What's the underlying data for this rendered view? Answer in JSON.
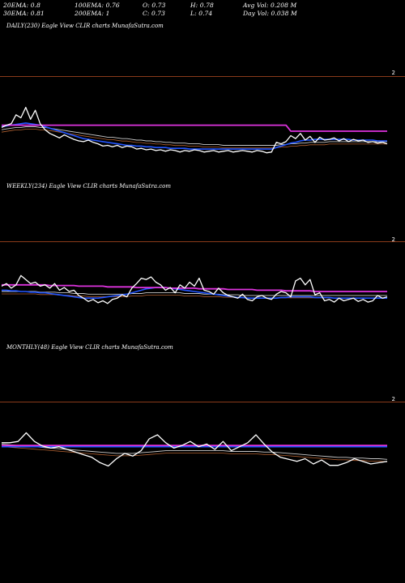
{
  "header": {
    "row1": [
      {
        "label": "20EMA: 0.8"
      },
      {
        "label": "100EMA: 0.76"
      },
      {
        "label": "O: 0.73"
      },
      {
        "label": "H: 0.78"
      },
      {
        "label": "Avg Vol: 0.208 M"
      }
    ],
    "row2": [
      {
        "label": "30EMA: 0.81"
      },
      {
        "label": "200EMA: 1"
      },
      {
        "label": "C: 0.73"
      },
      {
        "label": "L: 0.74"
      },
      {
        "label": "Day Vol: 0.038 M"
      }
    ]
  },
  "panels": {
    "daily_label": "DAILY(230) Eagle   View  CLIR charts MunafaSutra.com",
    "weekly_label": "WEEKLY(234) Eagle   View  CLIR charts MunafaSutra.com",
    "monthly_label": "MONTHLY(48) Eagle   View  CLIR charts MunafaSutra.com",
    "edge_marker": "2"
  },
  "colors": {
    "background": "#000000",
    "separator": "#8a3a1a",
    "price": "#ffffff",
    "ema_short": "#2255ff",
    "ema_long": "#dd33dd",
    "ema_mid": "#c8c8c8",
    "ema_slow": "#b06030"
  },
  "chart_data": [
    {
      "type": "line",
      "title": "DAILY(230) Eagle View CLIR charts MunafaSutra.com",
      "x": [
        0,
        1,
        2,
        3,
        4,
        5,
        6,
        7,
        8,
        9,
        10,
        11,
        12,
        13,
        14,
        15,
        16,
        17,
        18,
        19,
        20,
        21,
        22,
        23,
        24,
        25,
        26,
        27,
        28,
        29,
        30,
        31,
        32,
        33,
        34,
        35,
        36,
        37,
        38,
        39,
        40,
        41,
        42,
        43,
        44,
        45,
        46,
        47,
        48,
        49,
        50,
        51,
        52,
        53,
        54,
        55,
        56,
        57,
        58,
        59,
        60,
        61,
        62,
        63,
        64,
        65,
        66,
        67,
        68,
        69,
        70,
        71,
        72,
        73,
        74,
        75,
        76,
        77,
        78,
        79,
        80
      ],
      "ylim": [
        0,
        100
      ],
      "series": [
        {
          "values": [
            55,
            58,
            60,
            72,
            68,
            82,
            66,
            78,
            60,
            52,
            47,
            44,
            41,
            45,
            42,
            39,
            37,
            36,
            38,
            35,
            33,
            30,
            31,
            29,
            31,
            28,
            30,
            29,
            26,
            27,
            25,
            26,
            24,
            25,
            23,
            25,
            24,
            22,
            24,
            23,
            25,
            24,
            22,
            23,
            24,
            22,
            23,
            24,
            22,
            23,
            24,
            23,
            22,
            24,
            23,
            21,
            22,
            35,
            33,
            36,
            44,
            40,
            47,
            38,
            43,
            35,
            42,
            38,
            39,
            41,
            37,
            40,
            36,
            39,
            37,
            38,
            35,
            36,
            34,
            35,
            33
          ]
        },
        {
          "values": [
            56,
            57,
            58,
            59,
            60,
            61,
            60,
            59,
            58,
            56,
            54,
            52,
            50,
            48,
            46,
            44,
            42,
            40,
            39,
            38,
            37,
            36,
            35,
            34,
            33,
            32,
            31,
            31,
            30,
            30,
            29,
            29,
            28,
            28,
            28,
            27,
            27,
            27,
            27,
            26,
            26,
            26,
            26,
            26,
            26,
            26,
            26,
            26,
            26,
            26,
            26,
            26,
            26,
            26,
            26,
            26,
            26,
            28,
            30,
            32,
            34,
            35,
            37,
            38,
            38,
            39,
            39,
            39,
            39,
            39,
            39,
            39,
            39,
            38,
            38,
            38,
            38,
            38,
            37,
            37,
            37
          ]
        },
        {
          "values": [
            52,
            53,
            54,
            55,
            55,
            56,
            56,
            56,
            55,
            55,
            54,
            53,
            52,
            51,
            50,
            49,
            48,
            47,
            46,
            45,
            44,
            43,
            42,
            42,
            41,
            40,
            40,
            39,
            38,
            38,
            37,
            37,
            36,
            36,
            35,
            35,
            34,
            34,
            34,
            33,
            33,
            33,
            32,
            32,
            32,
            32,
            31,
            31,
            31,
            31,
            31,
            31,
            31,
            31,
            31,
            31,
            31,
            31,
            32,
            32,
            33,
            33,
            34,
            34,
            35,
            35,
            35,
            35,
            36,
            36,
            36,
            36,
            36,
            36,
            36,
            36,
            36,
            36,
            36,
            36,
            36
          ]
        },
        {
          "values": [
            58,
            58,
            58,
            58,
            58,
            58,
            58,
            58,
            58,
            58,
            58,
            58,
            58,
            58,
            58,
            58,
            58,
            58,
            58,
            58,
            58,
            58,
            58,
            58,
            58,
            58,
            58,
            58,
            58,
            58,
            58,
            58,
            58,
            58,
            58,
            58,
            58,
            58,
            58,
            58,
            58,
            58,
            58,
            58,
            58,
            58,
            58,
            58,
            58,
            58,
            58,
            58,
            58,
            58,
            58,
            58,
            58,
            58,
            58,
            58,
            50,
            50,
            50,
            50,
            50,
            50,
            50,
            50,
            50,
            50,
            50,
            50,
            50,
            50,
            50,
            50,
            50,
            50,
            50,
            50,
            50
          ]
        }
      ]
    },
    {
      "type": "line",
      "title": "WEEKLY(234) Eagle View CLIR charts MunafaSutra.com",
      "x": [
        0,
        1,
        2,
        3,
        4,
        5,
        6,
        7,
        8,
        9,
        10,
        11,
        12,
        13,
        14,
        15,
        16,
        17,
        18,
        19,
        20,
        21,
        22,
        23,
        24,
        25,
        26,
        27,
        28,
        29,
        30,
        31,
        32,
        33,
        34,
        35,
        36,
        37,
        38,
        39,
        40,
        41,
        42,
        43,
        44,
        45,
        46,
        47,
        48,
        49,
        50,
        51,
        52,
        53,
        54,
        55,
        56,
        57,
        58,
        59,
        60,
        61,
        62,
        63,
        64,
        65,
        66,
        67,
        68,
        69,
        70,
        71,
        72,
        73,
        74,
        75,
        76,
        77,
        78,
        79,
        80
      ],
      "ylim": [
        0,
        100
      ],
      "series": [
        {
          "values": [
            58,
            62,
            55,
            60,
            74,
            68,
            62,
            64,
            58,
            60,
            55,
            62,
            52,
            56,
            50,
            52,
            44,
            40,
            35,
            38,
            33,
            36,
            32,
            38,
            40,
            45,
            42,
            55,
            62,
            70,
            68,
            72,
            64,
            60,
            52,
            56,
            48,
            60,
            55,
            64,
            58,
            70,
            52,
            50,
            46,
            55,
            48,
            44,
            42,
            40,
            46,
            38,
            36,
            42,
            44,
            40,
            38,
            46,
            50,
            48,
            42,
            66,
            70,
            60,
            68,
            45,
            48,
            36,
            38,
            34,
            40,
            36,
            38,
            40,
            35,
            38,
            34,
            36,
            44,
            40,
            42
          ]
        },
        {
          "values": [
            52,
            52,
            51,
            51,
            50,
            50,
            49,
            49,
            48,
            48,
            47,
            46,
            45,
            44,
            43,
            42,
            41,
            40,
            40,
            40,
            40,
            41,
            42,
            43,
            44,
            45,
            46,
            48,
            50,
            52,
            54,
            55,
            56,
            56,
            56,
            55,
            54,
            53,
            52,
            51,
            50,
            49,
            48,
            47,
            46,
            45,
            44,
            43,
            42,
            41,
            41,
            40,
            40,
            40,
            40,
            40,
            40,
            40,
            41,
            41,
            42,
            42,
            42,
            42,
            42,
            41,
            41,
            41,
            41,
            40,
            40,
            40,
            40,
            40,
            40,
            40,
            40,
            40,
            40,
            40,
            40
          ]
        },
        {
          "values": [
            50,
            50,
            50,
            50,
            50,
            50,
            50,
            50,
            49,
            49,
            49,
            49,
            48,
            48,
            48,
            47,
            47,
            47,
            46,
            46,
            46,
            46,
            46,
            46,
            46,
            46,
            46,
            47,
            47,
            47,
            48,
            48,
            48,
            48,
            48,
            48,
            48,
            48,
            47,
            47,
            47,
            47,
            46,
            46,
            46,
            46,
            45,
            45,
            45,
            45,
            44,
            44,
            44,
            44,
            44,
            44,
            44,
            44,
            44,
            44,
            44,
            44,
            44,
            44,
            44,
            44,
            44,
            44,
            44,
            44,
            44,
            44,
            44,
            44,
            44,
            44,
            44,
            44,
            44,
            44,
            44
          ]
        },
        {
          "values": [
            60,
            60,
            60,
            60,
            60,
            60,
            60,
            60,
            60,
            60,
            59,
            59,
            59,
            59,
            59,
            59,
            58,
            58,
            58,
            58,
            58,
            58,
            57,
            57,
            57,
            57,
            57,
            57,
            56,
            56,
            56,
            56,
            56,
            56,
            56,
            55,
            55,
            55,
            55,
            55,
            55,
            54,
            54,
            54,
            54,
            54,
            54,
            53,
            53,
            53,
            53,
            53,
            53,
            52,
            52,
            52,
            52,
            52,
            52,
            51,
            51,
            51,
            51,
            51,
            51,
            50,
            50,
            50,
            50,
            50,
            50,
            50,
            50,
            50,
            50,
            50,
            50,
            50,
            50,
            50,
            50
          ]
        }
      ]
    },
    {
      "type": "line",
      "title": "MONTHLY(48) Eagle View CLIR charts MunafaSutra.com",
      "x": [
        0,
        1,
        2,
        3,
        4,
        5,
        6,
        7,
        8,
        9,
        10,
        11,
        12,
        13,
        14,
        15,
        16,
        17,
        18,
        19,
        20,
        21,
        22,
        23,
        24,
        25,
        26,
        27,
        28,
        29,
        30,
        31,
        32,
        33,
        34,
        35,
        36,
        37,
        38,
        39,
        40,
        41,
        42,
        43,
        44,
        45,
        46,
        47
      ],
      "ylim": [
        0,
        100
      ],
      "series": [
        {
          "values": [
            60,
            60,
            62,
            75,
            62,
            55,
            52,
            54,
            50,
            46,
            42,
            38,
            30,
            25,
            36,
            44,
            40,
            48,
            66,
            72,
            60,
            52,
            56,
            62,
            54,
            58,
            50,
            62,
            48,
            54,
            60,
            72,
            58,
            46,
            38,
            35,
            32,
            36,
            28,
            34,
            26,
            26,
            30,
            36,
            32,
            28,
            30,
            32
          ]
        },
        {
          "values": [
            54,
            54,
            54,
            54,
            54,
            54,
            54,
            54,
            54,
            54,
            54,
            54,
            54,
            54,
            54,
            54,
            54,
            54,
            54,
            54,
            54,
            54,
            54,
            54,
            54,
            54,
            54,
            54,
            54,
            54,
            54,
            54,
            54,
            54,
            54,
            54,
            54,
            54,
            54,
            54,
            54,
            54,
            54,
            54,
            54,
            54,
            54,
            54
          ]
        },
        {
          "values": [
            58,
            57,
            56,
            55,
            54,
            53,
            52,
            51,
            50,
            49,
            48,
            47,
            46,
            45,
            44,
            44,
            44,
            45,
            46,
            47,
            48,
            48,
            48,
            48,
            48,
            48,
            48,
            48,
            47,
            47,
            47,
            47,
            46,
            46,
            45,
            44,
            43,
            42,
            41,
            40,
            39,
            38,
            38,
            37,
            37,
            36,
            36,
            35
          ]
        },
        {
          "values": [
            56,
            56,
            56,
            56,
            56,
            56,
            56,
            56,
            56,
            56,
            56,
            56,
            56,
            56,
            56,
            56,
            56,
            56,
            56,
            56,
            56,
            56,
            56,
            56,
            56,
            56,
            56,
            56,
            56,
            56,
            56,
            56,
            56,
            56,
            56,
            56,
            56,
            56,
            56,
            56,
            56,
            56,
            56,
            56,
            56,
            56,
            56,
            56
          ]
        }
      ]
    }
  ]
}
